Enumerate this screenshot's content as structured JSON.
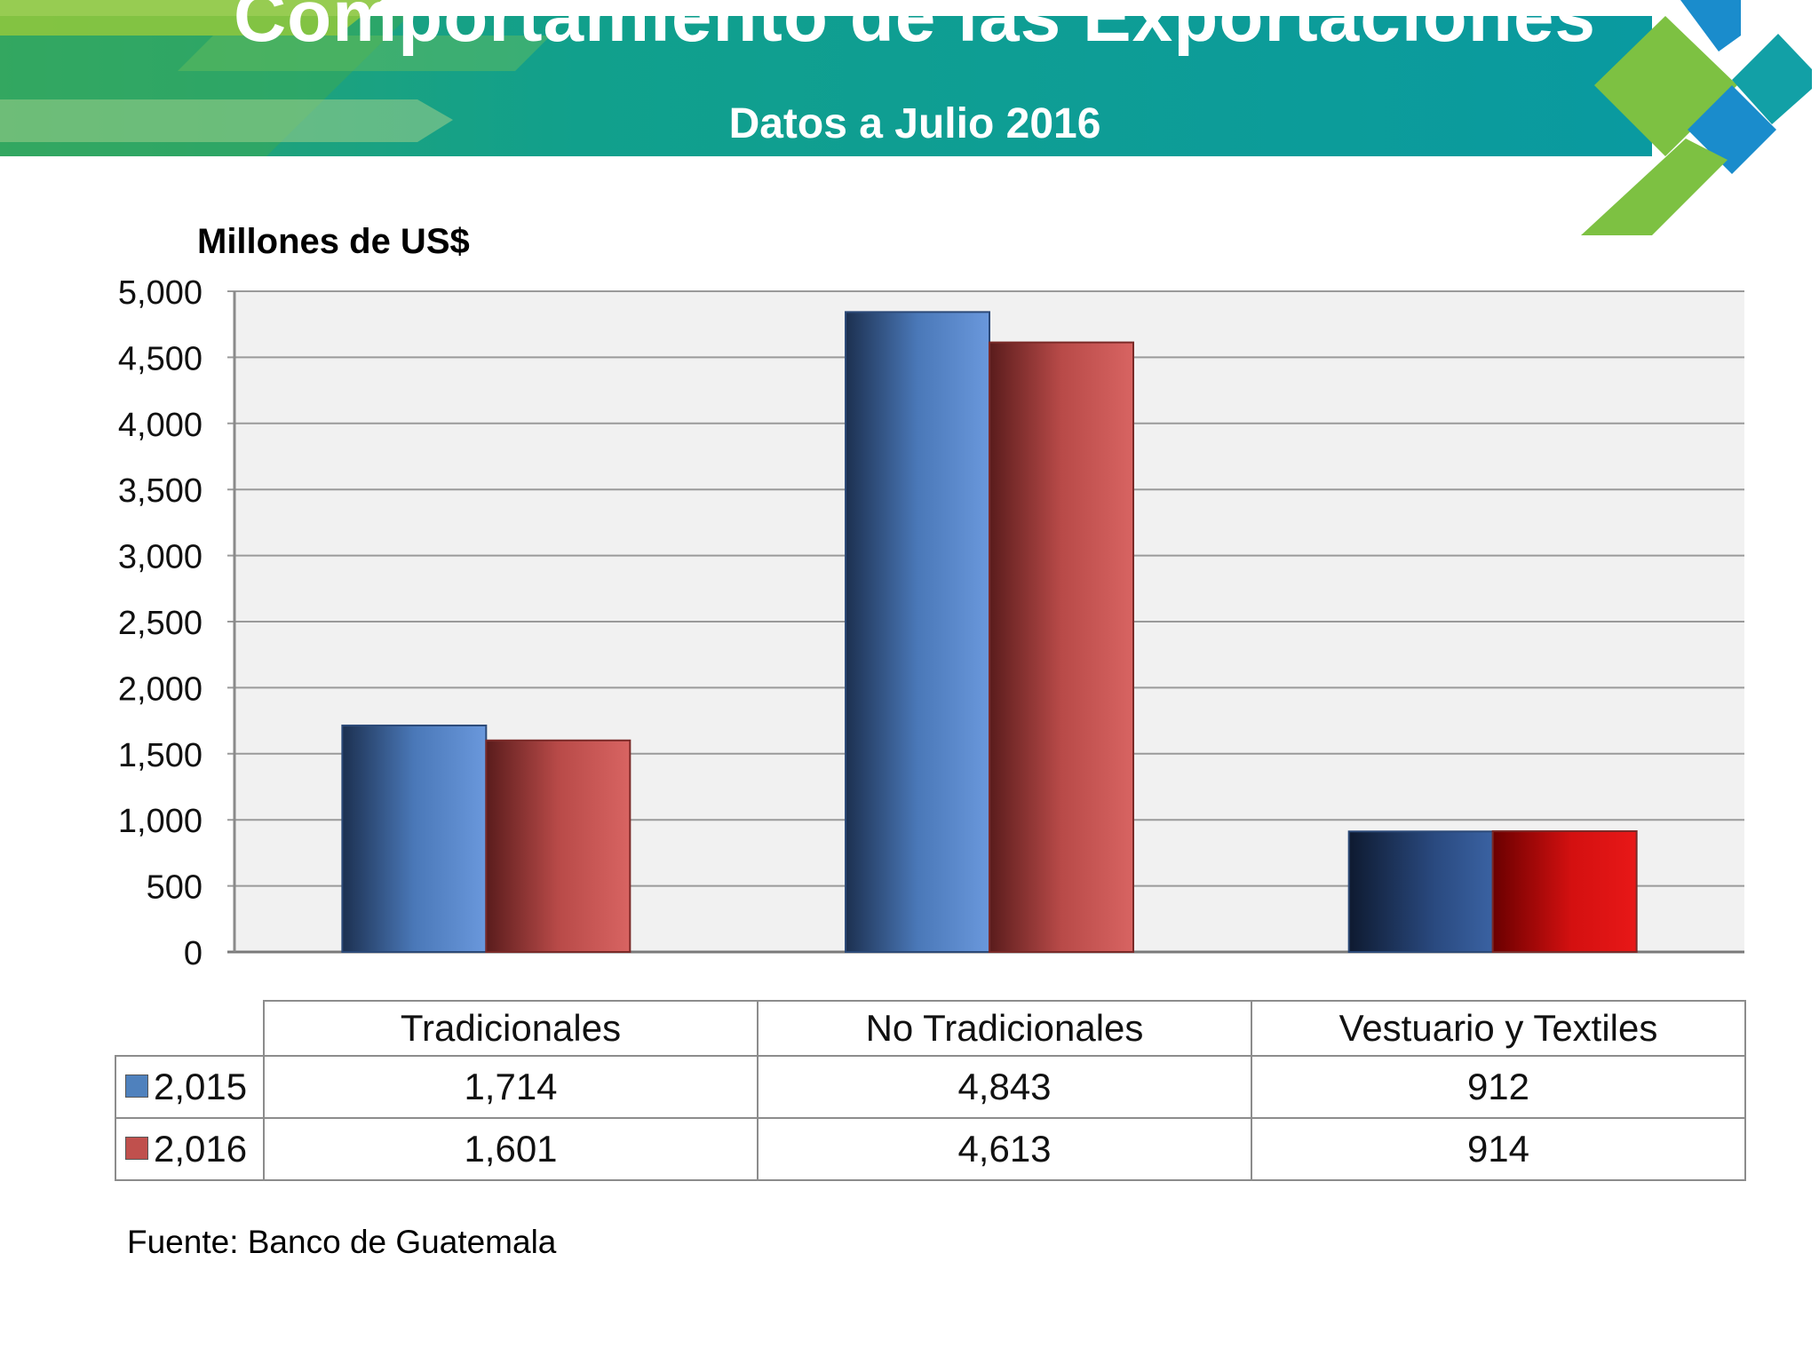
{
  "header": {
    "title": "Comportamiento de las Exportaciones",
    "subtitle": "Datos a Julio 2016"
  },
  "chart_data": {
    "type": "bar",
    "title": "",
    "ylabel": "Millones de US$",
    "xlabel": "",
    "ylim": [
      0,
      5000
    ],
    "yticks": [
      "0",
      "500",
      "1,000",
      "1,500",
      "2,000",
      "2,500",
      "3,000",
      "3,500",
      "4,000",
      "4,500",
      "5,000"
    ],
    "grid": true,
    "legend": "data-table",
    "categories": [
      "Tradicionales",
      "No Tradicionales",
      "Vestuario  y Textiles"
    ],
    "series": [
      {
        "name": "2,015",
        "values": [
          1714,
          4843,
          912
        ],
        "labels": [
          "1,714",
          "4,843",
          "912"
        ],
        "color": "#4f81bd"
      },
      {
        "name": "2,016",
        "values": [
          1601,
          4613,
          914
        ],
        "labels": [
          "1,601",
          "4,613",
          "914"
        ],
        "color": "#c0504d"
      }
    ]
  },
  "footer": {
    "source": "Fuente: Banco de Guatemala"
  },
  "colors": {
    "banner_teal": "#0e9a9a",
    "banner_green": "#8cc63f",
    "diamond_green": "#7dc142",
    "diamond_blue": "#1a8ccc"
  }
}
